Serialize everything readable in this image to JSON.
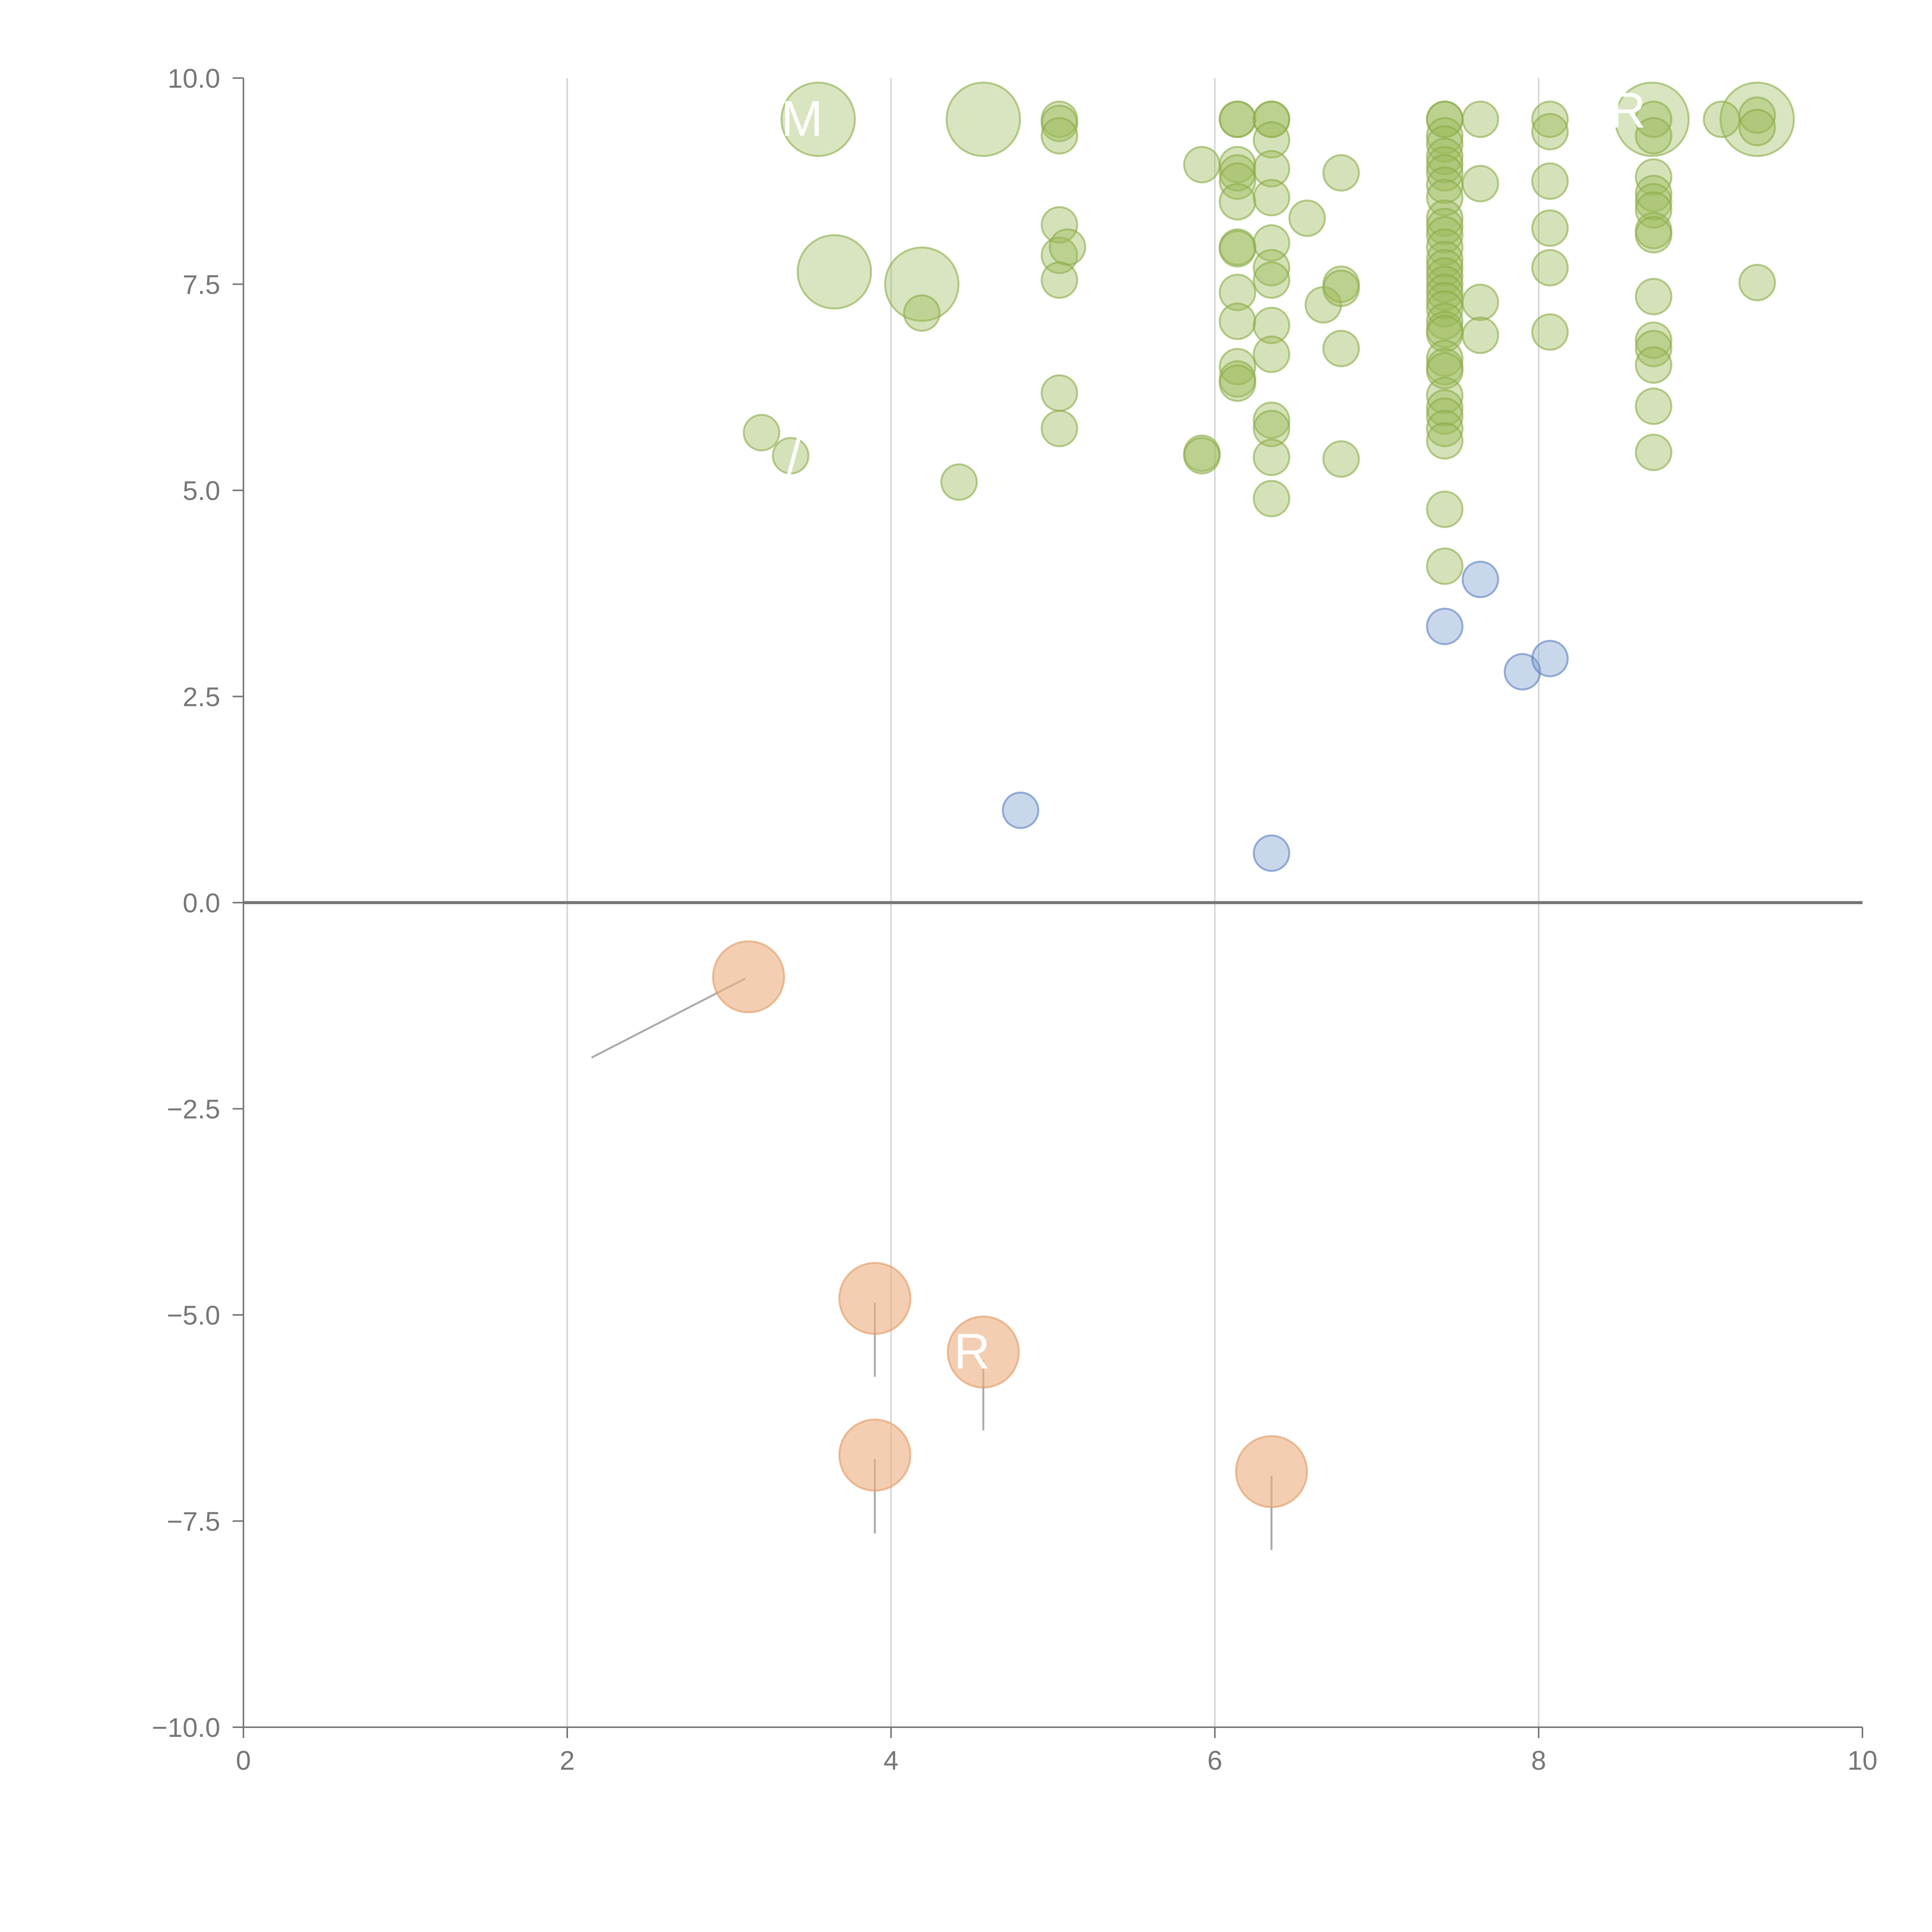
{
  "chart_data": {
    "type": "scatter",
    "title": "",
    "xlabel": "",
    "ylabel": "",
    "xlim": [
      0,
      10
    ],
    "ylim": [
      -10,
      10
    ],
    "grid": "vertical",
    "x_ticks": [
      "0",
      "2",
      "4",
      "6",
      "8",
      "10"
    ],
    "y_ticks": [
      "10.0",
      "7.5",
      "5.0",
      "2.5",
      "0.0",
      "−2.5",
      "−5.0",
      "−7.5",
      "−10.0"
    ],
    "x_tick_values": [
      0,
      2,
      4,
      6,
      8,
      10
    ],
    "y_tick_values": [
      10,
      7.5,
      5,
      2.5,
      0,
      -2.5,
      -5,
      -7.5,
      -10
    ],
    "colors": {
      "green": "#9bbb59",
      "green_edge": "#8aac48",
      "blue": "#7f9fd0",
      "blue_edge": "#5a7fc0",
      "orange": "#ebb083",
      "orange_edge": "#e29a63"
    },
    "series": [
      {
        "color_key": "green",
        "points": [
          {
            "x": 3.55,
            "y": 9.5,
            "r": 3
          },
          {
            "x": 4.57,
            "y": 9.5,
            "r": 3
          },
          {
            "x": 3.65,
            "y": 7.65,
            "r": 3
          },
          {
            "x": 4.19,
            "y": 7.5,
            "r": 3
          },
          {
            "x": 8.7,
            "y": 9.5,
            "r": 3
          },
          {
            "x": 9.35,
            "y": 9.5,
            "r": 3
          },
          {
            "x": 5.04,
            "y": 9.5,
            "r": 1
          },
          {
            "x": 5.04,
            "y": 9.45,
            "r": 1
          },
          {
            "x": 5.04,
            "y": 9.3,
            "r": 1
          },
          {
            "x": 5.04,
            "y": 8.22,
            "r": 1
          },
          {
            "x": 5.04,
            "y": 7.85,
            "r": 1
          },
          {
            "x": 5.09,
            "y": 7.95,
            "r": 1
          },
          {
            "x": 5.04,
            "y": 7.55,
            "r": 1
          },
          {
            "x": 5.04,
            "y": 6.18,
            "r": 1
          },
          {
            "x": 5.04,
            "y": 5.75,
            "r": 1
          },
          {
            "x": 4.19,
            "y": 7.15,
            "r": 1
          },
          {
            "x": 4.42,
            "y": 5.1,
            "r": 1
          },
          {
            "x": 3.2,
            "y": 5.7,
            "r": 1
          },
          {
            "x": 3.38,
            "y": 5.42,
            "r": 1
          },
          {
            "x": 5.92,
            "y": 8.95,
            "r": 1
          },
          {
            "x": 5.92,
            "y": 5.45,
            "r": 1
          },
          {
            "x": 5.92,
            "y": 5.42,
            "r": 1
          },
          {
            "x": 6.14,
            "y": 9.5,
            "r": 1
          },
          {
            "x": 6.14,
            "y": 9.5,
            "r": 1
          },
          {
            "x": 6.14,
            "y": 8.95,
            "r": 1
          },
          {
            "x": 6.14,
            "y": 8.85,
            "r": 1
          },
          {
            "x": 6.14,
            "y": 8.75,
            "r": 1
          },
          {
            "x": 6.14,
            "y": 8.5,
            "r": 1
          },
          {
            "x": 6.14,
            "y": 7.95,
            "r": 1
          },
          {
            "x": 6.14,
            "y": 7.93,
            "r": 1
          },
          {
            "x": 6.14,
            "y": 7.4,
            "r": 1
          },
          {
            "x": 6.14,
            "y": 7.05,
            "r": 1
          },
          {
            "x": 6.14,
            "y": 6.5,
            "r": 1
          },
          {
            "x": 6.14,
            "y": 6.35,
            "r": 1
          },
          {
            "x": 6.14,
            "y": 6.3,
            "r": 1
          },
          {
            "x": 6.35,
            "y": 9.5,
            "r": 1
          },
          {
            "x": 6.35,
            "y": 9.5,
            "r": 1
          },
          {
            "x": 6.35,
            "y": 9.25,
            "r": 1
          },
          {
            "x": 6.35,
            "y": 8.9,
            "r": 1
          },
          {
            "x": 6.35,
            "y": 8.55,
            "r": 1
          },
          {
            "x": 6.35,
            "y": 8.0,
            "r": 1
          },
          {
            "x": 6.35,
            "y": 7.7,
            "r": 1
          },
          {
            "x": 6.35,
            "y": 7.55,
            "r": 1
          },
          {
            "x": 6.35,
            "y": 7.0,
            "r": 1
          },
          {
            "x": 6.35,
            "y": 6.65,
            "r": 1
          },
          {
            "x": 6.35,
            "y": 5.85,
            "r": 1
          },
          {
            "x": 6.35,
            "y": 5.75,
            "r": 1
          },
          {
            "x": 6.35,
            "y": 5.4,
            "r": 1
          },
          {
            "x": 6.35,
            "y": 4.9,
            "r": 1
          },
          {
            "x": 6.57,
            "y": 8.3,
            "r": 1
          },
          {
            "x": 6.67,
            "y": 7.25,
            "r": 1
          },
          {
            "x": 6.78,
            "y": 8.85,
            "r": 1
          },
          {
            "x": 6.78,
            "y": 7.5,
            "r": 1
          },
          {
            "x": 6.78,
            "y": 7.45,
            "r": 1
          },
          {
            "x": 6.78,
            "y": 6.72,
            "r": 1
          },
          {
            "x": 6.78,
            "y": 5.38,
            "r": 1
          },
          {
            "x": 7.42,
            "y": 9.5,
            "r": 1
          },
          {
            "x": 7.42,
            "y": 9.5,
            "r": 1
          },
          {
            "x": 7.42,
            "y": 9.3,
            "r": 1
          },
          {
            "x": 7.42,
            "y": 9.2,
            "r": 1
          },
          {
            "x": 7.42,
            "y": 9.05,
            "r": 1
          },
          {
            "x": 7.42,
            "y": 8.95,
            "r": 1
          },
          {
            "x": 7.42,
            "y": 8.85,
            "r": 1
          },
          {
            "x": 7.42,
            "y": 8.7,
            "r": 1
          },
          {
            "x": 7.42,
            "y": 8.55,
            "r": 1
          },
          {
            "x": 7.42,
            "y": 8.3,
            "r": 1
          },
          {
            "x": 7.42,
            "y": 8.2,
            "r": 1
          },
          {
            "x": 7.42,
            "y": 8.1,
            "r": 1
          },
          {
            "x": 7.42,
            "y": 7.95,
            "r": 1
          },
          {
            "x": 7.42,
            "y": 7.8,
            "r": 1
          },
          {
            "x": 7.42,
            "y": 7.7,
            "r": 1
          },
          {
            "x": 7.42,
            "y": 7.6,
            "r": 1
          },
          {
            "x": 7.42,
            "y": 7.5,
            "r": 1
          },
          {
            "x": 7.42,
            "y": 7.4,
            "r": 1
          },
          {
            "x": 7.42,
            "y": 7.3,
            "r": 1
          },
          {
            "x": 7.42,
            "y": 7.2,
            "r": 1
          },
          {
            "x": 7.42,
            "y": 7.05,
            "r": 1
          },
          {
            "x": 7.42,
            "y": 6.95,
            "r": 1
          },
          {
            "x": 7.42,
            "y": 6.9,
            "r": 1
          },
          {
            "x": 7.42,
            "y": 6.6,
            "r": 1
          },
          {
            "x": 7.42,
            "y": 6.5,
            "r": 1
          },
          {
            "x": 7.42,
            "y": 6.45,
            "r": 1
          },
          {
            "x": 7.42,
            "y": 6.15,
            "r": 1
          },
          {
            "x": 7.42,
            "y": 6.0,
            "r": 1
          },
          {
            "x": 7.42,
            "y": 5.9,
            "r": 1
          },
          {
            "x": 7.42,
            "y": 5.75,
            "r": 1
          },
          {
            "x": 7.42,
            "y": 5.6,
            "r": 1
          },
          {
            "x": 7.42,
            "y": 4.77,
            "r": 1
          },
          {
            "x": 7.42,
            "y": 4.08,
            "r": 1
          },
          {
            "x": 7.64,
            "y": 9.5,
            "r": 1
          },
          {
            "x": 7.64,
            "y": 8.72,
            "r": 1
          },
          {
            "x": 7.64,
            "y": 7.28,
            "r": 1
          },
          {
            "x": 7.64,
            "y": 6.88,
            "r": 1
          },
          {
            "x": 8.07,
            "y": 9.5,
            "r": 1
          },
          {
            "x": 8.07,
            "y": 9.35,
            "r": 1
          },
          {
            "x": 8.07,
            "y": 8.75,
            "r": 1
          },
          {
            "x": 8.07,
            "y": 8.18,
            "r": 1
          },
          {
            "x": 8.07,
            "y": 7.7,
            "r": 1
          },
          {
            "x": 8.07,
            "y": 6.92,
            "r": 1
          },
          {
            "x": 8.71,
            "y": 9.5,
            "r": 1
          },
          {
            "x": 8.71,
            "y": 9.3,
            "r": 1
          },
          {
            "x": 8.71,
            "y": 8.8,
            "r": 1
          },
          {
            "x": 8.71,
            "y": 8.6,
            "r": 1
          },
          {
            "x": 8.71,
            "y": 8.5,
            "r": 1
          },
          {
            "x": 8.71,
            "y": 8.4,
            "r": 1
          },
          {
            "x": 8.71,
            "y": 8.15,
            "r": 1
          },
          {
            "x": 8.71,
            "y": 8.1,
            "r": 1
          },
          {
            "x": 8.71,
            "y": 7.35,
            "r": 1
          },
          {
            "x": 8.71,
            "y": 6.82,
            "r": 1
          },
          {
            "x": 8.71,
            "y": 6.72,
            "r": 1
          },
          {
            "x": 8.71,
            "y": 6.52,
            "r": 1
          },
          {
            "x": 8.71,
            "y": 6.02,
            "r": 1
          },
          {
            "x": 8.71,
            "y": 5.46,
            "r": 1
          },
          {
            "x": 9.13,
            "y": 9.5,
            "r": 1
          },
          {
            "x": 9.35,
            "y": 9.55,
            "r": 1
          },
          {
            "x": 9.35,
            "y": 9.4,
            "r": 1
          },
          {
            "x": 9.35,
            "y": 7.52,
            "r": 1
          }
        ]
      },
      {
        "color_key": "blue",
        "points": [
          {
            "x": 4.8,
            "y": 1.12,
            "r": 1
          },
          {
            "x": 6.35,
            "y": 0.6,
            "r": 1
          },
          {
            "x": 7.42,
            "y": 3.35,
            "r": 1
          },
          {
            "x": 7.64,
            "y": 3.92,
            "r": 1
          },
          {
            "x": 7.9,
            "y": 2.8,
            "r": 1
          },
          {
            "x": 8.07,
            "y": 2.96,
            "r": 1
          }
        ]
      },
      {
        "color_key": "orange",
        "points": [
          {
            "x": 3.12,
            "y": -0.9,
            "r": 2
          },
          {
            "x": 3.9,
            "y": -4.8,
            "r": 2
          },
          {
            "x": 4.57,
            "y": -5.45,
            "r": 2
          },
          {
            "x": 3.9,
            "y": -6.7,
            "r": 2
          },
          {
            "x": 6.35,
            "y": -6.9,
            "r": 2
          }
        ]
      }
    ],
    "point_labels": [
      {
        "text": "M",
        "x": 3.45,
        "y": 9.3
      },
      {
        "text": "/",
        "x": 3.4,
        "y": 5.2
      },
      {
        "text": "R",
        "x": 8.55,
        "y": 9.4
      },
      {
        "text": "R",
        "x": 4.5,
        "y": -5.65
      }
    ],
    "leaders": [
      {
        "x1": 3.1,
        "y1": -0.92,
        "x2": 2.15,
        "y2": -1.88,
        "style": "gray"
      },
      {
        "x1": 3.9,
        "y1": -4.85,
        "x2": 3.9,
        "y2": -5.75,
        "style": "gray"
      },
      {
        "x1": 4.57,
        "y1": -5.55,
        "x2": 4.57,
        "y2": -6.4,
        "style": "gray"
      },
      {
        "x1": 3.9,
        "y1": -6.75,
        "x2": 3.9,
        "y2": -7.65,
        "style": "gray"
      },
      {
        "x1": 6.35,
        "y1": -6.95,
        "x2": 6.35,
        "y2": -7.85,
        "style": "gray"
      },
      {
        "x1": 3.55,
        "y1": 9.45,
        "x2": 3.45,
        "y2": 9.05,
        "style": "light"
      },
      {
        "x1": 4.57,
        "y1": 9.45,
        "x2": 4.55,
        "y2": 9.05,
        "style": "light"
      },
      {
        "x1": 3.65,
        "y1": 7.6,
        "x2": 3.62,
        "y2": 7.25,
        "style": "light"
      },
      {
        "x1": 4.19,
        "y1": 7.45,
        "x2": 4.16,
        "y2": 7.0,
        "style": "light"
      },
      {
        "x1": 9.35,
        "y1": 9.45,
        "x2": 9.33,
        "y2": 9.05,
        "style": "light"
      }
    ]
  }
}
